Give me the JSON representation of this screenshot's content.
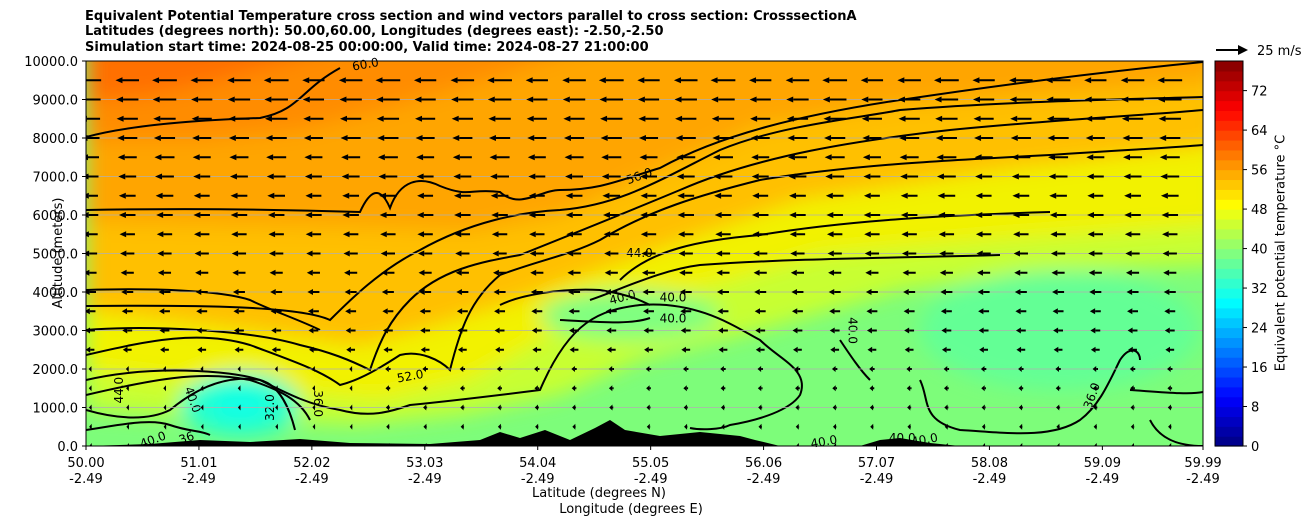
{
  "title_lines": [
    "Equivalent Potential Temperature cross section and wind vectors parallel to cross section: CrosssectionA",
    "Latitudes (degrees north): 50.00,60.00, Longitudes (degrees east): -2.50,-2.50",
    "Simulation start time: 2024-08-25 00:00:00, Valid time: 2024-08-27 21:00:00"
  ],
  "chart_data": {
    "type": "contour-cross-section",
    "x_ticks_lat": [
      "50.00",
      "51.01",
      "52.02",
      "53.03",
      "54.04",
      "55.05",
      "56.06",
      "57.07",
      "58.08",
      "59.09",
      "59.99"
    ],
    "x_ticks_lon": [
      "-2.49",
      "-2.49",
      "-2.49",
      "-2.49",
      "-2.49",
      "-2.49",
      "-2.49",
      "-2.49",
      "-2.49",
      "-2.49",
      "-2.49"
    ],
    "x_lat_values": [
      50.0,
      51.01,
      52.02,
      53.03,
      54.04,
      55.05,
      56.06,
      57.07,
      58.08,
      59.09,
      59.99
    ],
    "xlim": [
      50.0,
      59.99
    ],
    "y_ticks": [
      "0.0",
      "1000.0",
      "2000.0",
      "3000.0",
      "4000.0",
      "5000.0",
      "6000.0",
      "7000.0",
      "8000.0",
      "9000.0",
      "10000.0"
    ],
    "y_tick_values": [
      0,
      1000,
      2000,
      3000,
      4000,
      5000,
      6000,
      7000,
      8000,
      9000,
      10000
    ],
    "ylim": [
      0,
      10000
    ],
    "xlabel_lat": "Latitude (degrees N)",
    "xlabel_lon": "Longitude (degrees E)",
    "ylabel": "Altitude (meters)",
    "colorbar": {
      "label": "Equivalent potential temperature $^\\circ$C",
      "label_display": "Equivalent potential temperature °C",
      "ticks": [
        "0",
        "8",
        "16",
        "24",
        "32",
        "40",
        "48",
        "56",
        "64",
        "72"
      ],
      "tick_values": [
        0,
        8,
        16,
        24,
        32,
        40,
        48,
        56,
        64,
        72
      ],
      "range": [
        0,
        78
      ],
      "colormap": "jet"
    },
    "quiver_key": {
      "label": "25 m/s",
      "speed": 25
    },
    "contour_labels": [
      {
        "text": "60.0",
        "lat": 52.5,
        "alt": 9900,
        "rot": -10
      },
      {
        "text": "56.0",
        "lat": 54.95,
        "alt": 7000,
        "rot": -20
      },
      {
        "text": "44.0",
        "lat": 54.95,
        "alt": 5000,
        "rot": 0
      },
      {
        "text": "40.0",
        "lat": 54.8,
        "alt": 3850,
        "rot": -15
      },
      {
        "text": "40.0",
        "lat": 55.25,
        "alt": 3850,
        "rot": 0
      },
      {
        "text": "40.0",
        "lat": 55.25,
        "alt": 3300,
        "rot": 0
      },
      {
        "text": "52.0",
        "lat": 52.9,
        "alt": 1800,
        "rot": -10
      },
      {
        "text": "44.0",
        "lat": 50.3,
        "alt": 1450,
        "rot": -90
      },
      {
        "text": "40.0",
        "lat": 50.95,
        "alt": 1200,
        "rot": 70
      },
      {
        "text": "32.0",
        "lat": 51.65,
        "alt": 1000,
        "rot": -90
      },
      {
        "text": "36.0",
        "lat": 52.07,
        "alt": 1100,
        "rot": 90
      },
      {
        "text": "40.0",
        "lat": 56.85,
        "alt": 3000,
        "rot": 90
      },
      {
        "text": "36.0",
        "lat": 59.0,
        "alt": 1300,
        "rot": -70
      },
      {
        "text": "40.0",
        "lat": 56.6,
        "alt": 100,
        "rot": -10
      },
      {
        "text": "40.0",
        "lat": 57.3,
        "alt": 200,
        "rot": 0
      },
      {
        "text": "40.0",
        "lat": 57.5,
        "alt": 150,
        "rot": -10
      },
      {
        "text": "40.0",
        "lat": 50.6,
        "alt": 150,
        "rot": -20
      },
      {
        "text": "36",
        "lat": 50.9,
        "alt": 200,
        "rot": -20
      }
    ],
    "wind_summary": "Vectors point toward decreasing latitude; strongest (~20-25 m/s) above 6000 m, weak near surface."
  }
}
